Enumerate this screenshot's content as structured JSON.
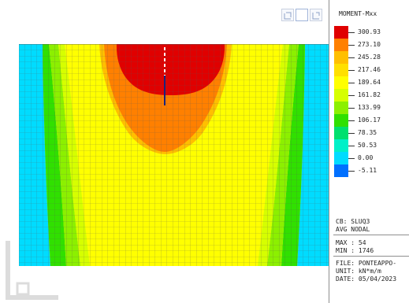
{
  "legend": {
    "title": "MOMENT-Mxx",
    "colors": [
      "#e00000",
      "#ff8000",
      "#ffbf00",
      "#ffe000",
      "#ffff00",
      "#d6ff00",
      "#8cf000",
      "#30e000",
      "#00e06e",
      "#00f0c8",
      "#00dcff",
      "#0070ff"
    ],
    "values": [
      "300.93",
      "273.10",
      "245.28",
      "217.46",
      "189.64",
      "161.82",
      "133.99",
      "106.17",
      "78.35",
      "50.53",
      "0.00",
      "-5.11"
    ]
  },
  "info": {
    "cb": "CB: SLUQ3",
    "avg": "AVG NODAL",
    "max": "MAX : 54",
    "min": "MIN : 1746",
    "file": "FILE: PONTEAPPO-",
    "unit": "UNIT: kN*m/m",
    "date": "DATE: 05/04/2023"
  },
  "toolbar": {
    "icons": [
      "fit-view-icon",
      "plain-view-icon",
      "rotate-view-icon"
    ]
  }
}
